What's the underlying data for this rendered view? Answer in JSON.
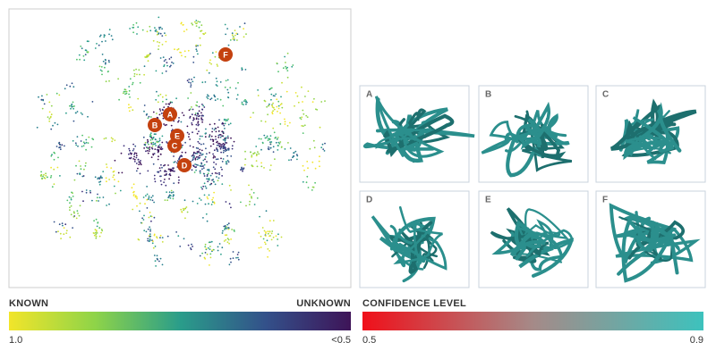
{
  "map_markers": [
    "F",
    "A",
    "B",
    "E",
    "C",
    "D"
  ],
  "panels": [
    "A",
    "B",
    "C",
    "D",
    "E",
    "F"
  ],
  "known_scale": {
    "left_title": "KNOWN",
    "right_title": "UNKNOWN",
    "min_label": "1.0",
    "max_label": "<0.5"
  },
  "confidence_scale": {
    "title": "CONFIDENCE LEVEL",
    "min_label": "0.5",
    "max_label": "0.9"
  }
}
